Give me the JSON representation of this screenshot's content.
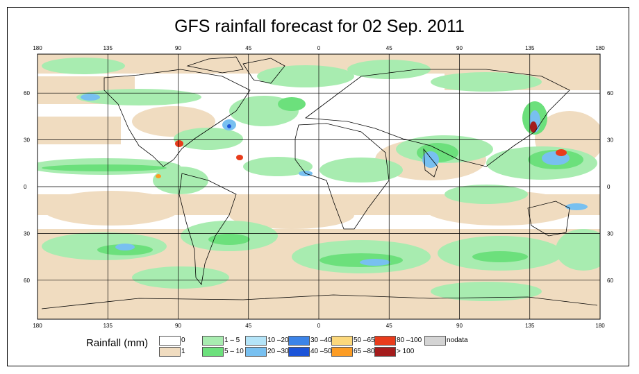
{
  "title": "GFS rainfall forecast for 02 Sep. 2011",
  "map": {
    "lon_ticks": [
      "180",
      "135",
      "90",
      "45",
      "0",
      "45",
      "90",
      "135",
      "180"
    ],
    "lat_ticks": [
      "60",
      "30",
      "0",
      "30",
      "60"
    ],
    "lon_range": [
      -180,
      180
    ],
    "lat_range": [
      -85,
      85
    ],
    "projection": "equirectangular",
    "grid": true
  },
  "legend": {
    "title": "Rainfall (mm)",
    "items": [
      {
        "label": "0",
        "color": "#ffffff"
      },
      {
        "label": "1",
        "color": "#f0dcc0"
      },
      {
        "label": "1 – 5",
        "color": "#a8ecb0"
      },
      {
        "label": "5 – 10",
        "color": "#6ce07c"
      },
      {
        "label": "10 –20",
        "color": "#b4e4f8"
      },
      {
        "label": "20 –30",
        "color": "#78c0f0"
      },
      {
        "label": "30 –40",
        "color": "#3c84e8"
      },
      {
        "label": "40 –50",
        "color": "#1c54d8"
      },
      {
        "label": "50 –65",
        "color": "#fcd87c"
      },
      {
        "label": "65 –80",
        "color": "#fc9c24"
      },
      {
        "label": "80 –100",
        "color": "#e83c1c"
      },
      {
        "label": "> 100",
        "color": "#a41c1c"
      },
      {
        "label": "nodata",
        "color": "#d4d4d4"
      }
    ]
  }
}
